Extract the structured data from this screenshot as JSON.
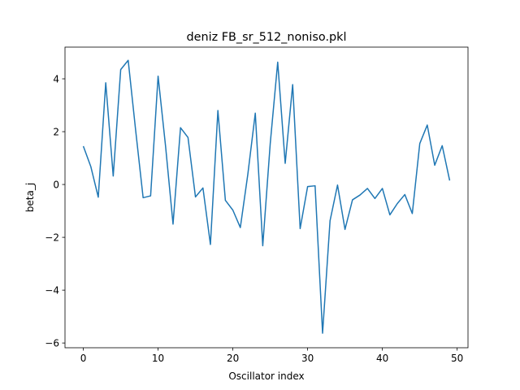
{
  "chart_data": {
    "type": "line",
    "title": "deniz FB_sr_512_noniso.pkl",
    "xlabel": "Oscillator index",
    "ylabel": "beta_j",
    "xlim": [
      -2.45,
      51.45
    ],
    "ylim": [
      -6.18,
      5.2
    ],
    "xticks": [
      0,
      10,
      20,
      30,
      40,
      50
    ],
    "xtick_labels": [
      "0",
      "10",
      "20",
      "30",
      "40",
      "50"
    ],
    "yticks": [
      -6,
      -4,
      -2,
      0,
      2,
      4
    ],
    "ytick_labels": [
      "−6",
      "−4",
      "−2",
      "0",
      "2",
      "4"
    ],
    "grid": false,
    "legend": "none",
    "series": [
      {
        "color": "#1f77b4",
        "x": [
          0,
          1,
          2,
          3,
          4,
          5,
          6,
          7,
          8,
          9,
          10,
          11,
          12,
          13,
          14,
          15,
          16,
          17,
          18,
          19,
          20,
          21,
          22,
          23,
          24,
          25,
          26,
          27,
          28,
          29,
          30,
          31,
          32,
          33,
          34,
          35,
          36,
          37,
          38,
          39,
          40,
          41,
          42,
          43,
          44,
          45,
          46,
          47,
          48,
          49
        ],
        "y": [
          1.45,
          0.68,
          -0.48,
          3.85,
          0.32,
          4.35,
          4.7,
          2.05,
          -0.5,
          -0.43,
          4.1,
          1.45,
          -1.5,
          2.15,
          1.78,
          -0.47,
          -0.13,
          -2.27,
          2.8,
          -0.6,
          -0.97,
          -1.63,
          0.38,
          2.7,
          -2.32,
          1.55,
          4.63,
          0.8,
          3.78,
          -1.67,
          -0.08,
          -0.05,
          -5.63,
          -1.37,
          -0.02,
          -1.7,
          -0.58,
          -0.4,
          -0.15,
          -0.53,
          -0.15,
          -1.15,
          -0.72,
          -0.38,
          -1.1,
          1.55,
          2.25,
          0.73,
          1.47,
          0.15
        ]
      }
    ]
  }
}
